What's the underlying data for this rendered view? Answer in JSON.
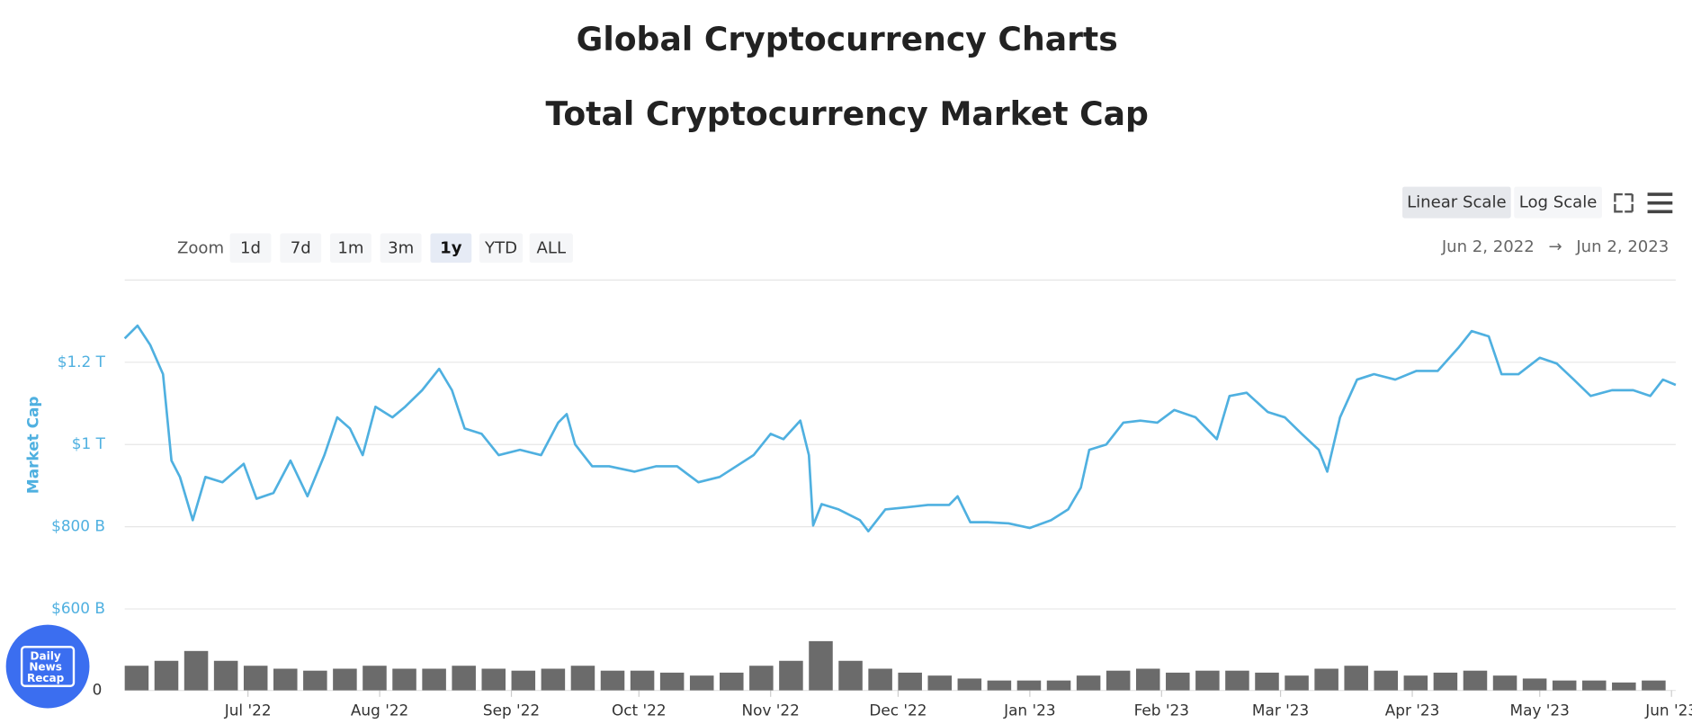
{
  "header": {
    "title": "Global Cryptocurrency Charts"
  },
  "controls": {
    "zoom_label": "Zoom",
    "zoom_options": [
      "1d",
      "7d",
      "1m",
      "3m",
      "1y",
      "YTD",
      "ALL"
    ],
    "zoom_selected": "1y",
    "scale_options": [
      "Linear Scale",
      "Log Scale"
    ],
    "scale_selected": "Linear Scale",
    "range_from": "Jun 2, 2022",
    "range_arrow": "→",
    "range_to": "Jun 2, 2023"
  },
  "logo": {
    "lines": [
      "Daily",
      "News",
      "Recap"
    ]
  },
  "chart_data": {
    "type": "line",
    "title": "Total Cryptocurrency Market Cap",
    "ylabel": "Market Cap",
    "x": [
      "2022-06-02",
      "2022-06-05",
      "2022-06-08",
      "2022-06-11",
      "2022-06-13",
      "2022-06-15",
      "2022-06-18",
      "2022-06-21",
      "2022-06-25",
      "2022-06-30",
      "2022-07-03",
      "2022-07-07",
      "2022-07-11",
      "2022-07-15",
      "2022-07-19",
      "2022-07-22",
      "2022-07-25",
      "2022-07-28",
      "2022-07-31",
      "2022-08-04",
      "2022-08-07",
      "2022-08-11",
      "2022-08-15",
      "2022-08-18",
      "2022-08-21",
      "2022-08-25",
      "2022-08-29",
      "2022-09-03",
      "2022-09-08",
      "2022-09-12",
      "2022-09-14",
      "2022-09-16",
      "2022-09-20",
      "2022-09-24",
      "2022-09-30",
      "2022-10-05",
      "2022-10-10",
      "2022-10-15",
      "2022-10-20",
      "2022-10-28",
      "2022-11-01",
      "2022-11-04",
      "2022-11-08",
      "2022-11-10",
      "2022-11-11",
      "2022-11-13",
      "2022-11-17",
      "2022-11-22",
      "2022-11-24",
      "2022-11-28",
      "2022-12-03",
      "2022-12-08",
      "2022-12-13",
      "2022-12-15",
      "2022-12-18",
      "2022-12-22",
      "2022-12-27",
      "2023-01-01",
      "2023-01-06",
      "2023-01-10",
      "2023-01-13",
      "2023-01-15",
      "2023-01-19",
      "2023-01-23",
      "2023-01-27",
      "2023-01-31",
      "2023-02-04",
      "2023-02-09",
      "2023-02-14",
      "2023-02-17",
      "2023-02-21",
      "2023-02-26",
      "2023-03-02",
      "2023-03-06",
      "2023-03-10",
      "2023-03-12",
      "2023-03-15",
      "2023-03-19",
      "2023-03-23",
      "2023-03-28",
      "2023-04-02",
      "2023-04-07",
      "2023-04-12",
      "2023-04-15",
      "2023-04-19",
      "2023-04-22",
      "2023-04-26",
      "2023-05-01",
      "2023-05-05",
      "2023-05-09",
      "2023-05-13",
      "2023-05-18",
      "2023-05-23",
      "2023-05-27",
      "2023-05-30",
      "2023-06-02"
    ],
    "series": [
      {
        "color": "#4fb0e0",
        "values": [
          1258,
          1289,
          1242,
          1171,
          961,
          921,
          816,
          921,
          908,
          953,
          868,
          882,
          961,
          874,
          974,
          1066,
          1039,
          974,
          1092,
          1066,
          1092,
          1132,
          1184,
          1132,
          1039,
          1026,
          974,
          987,
          974,
          1053,
          1074,
          1000,
          947,
          947,
          934,
          947,
          947,
          908,
          921,
          974,
          1026,
          1013,
          1058,
          974,
          803,
          855,
          842,
          816,
          789,
          842,
          847,
          853,
          853,
          874,
          811,
          811,
          808,
          797,
          816,
          842,
          895,
          987,
          1000,
          1053,
          1058,
          1053,
          1084,
          1066,
          1013,
          1118,
          1126,
          1079,
          1066,
          1026,
          987,
          934,
          1066,
          1158,
          1171,
          1158,
          1179,
          1179,
          1237,
          1276,
          1263,
          1171,
          1171,
          1211,
          1197,
          1158,
          1118,
          1132,
          1132,
          1118,
          1158,
          1145
        ]
      }
    ],
    "volume": {
      "color": "#6b6b6b",
      "x": [
        "2022-06-02",
        "2022-06-09",
        "2022-06-16",
        "2022-06-23",
        "2022-06-30",
        "2022-07-07",
        "2022-07-14",
        "2022-07-21",
        "2022-07-28",
        "2022-08-04",
        "2022-08-11",
        "2022-08-18",
        "2022-08-25",
        "2022-09-01",
        "2022-09-08",
        "2022-09-15",
        "2022-09-22",
        "2022-09-29",
        "2022-10-06",
        "2022-10-13",
        "2022-10-20",
        "2022-10-27",
        "2022-11-03",
        "2022-11-10",
        "2022-11-17",
        "2022-11-24",
        "2022-12-01",
        "2022-12-08",
        "2022-12-15",
        "2022-12-22",
        "2022-12-29",
        "2023-01-05",
        "2023-01-12",
        "2023-01-19",
        "2023-01-26",
        "2023-02-02",
        "2023-02-09",
        "2023-02-16",
        "2023-02-23",
        "2023-03-02",
        "2023-03-09",
        "2023-03-16",
        "2023-03-23",
        "2023-03-30",
        "2023-04-06",
        "2023-04-13",
        "2023-04-20",
        "2023-04-27",
        "2023-05-04",
        "2023-05-11",
        "2023-05-18",
        "2023-05-25"
      ],
      "values": [
        100,
        120,
        160,
        120,
        100,
        88,
        80,
        88,
        100,
        88,
        88,
        100,
        88,
        80,
        88,
        100,
        80,
        80,
        72,
        60,
        72,
        100,
        120,
        200,
        120,
        88,
        72,
        60,
        48,
        40,
        40,
        40,
        60,
        80,
        88,
        72,
        80,
        80,
        72,
        60,
        88,
        100,
        80,
        60,
        72,
        80,
        60,
        48,
        40,
        40,
        32,
        40
      ]
    },
    "xlim": [
      "2022-06-02",
      "2023-06-02"
    ],
    "xticks": [
      {
        "value": "2022-07-01",
        "label": "Jul '22"
      },
      {
        "value": "2022-08-01",
        "label": "Aug '22"
      },
      {
        "value": "2022-09-01",
        "label": "Sep '22"
      },
      {
        "value": "2022-10-01",
        "label": "Oct '22"
      },
      {
        "value": "2022-11-01",
        "label": "Nov '22"
      },
      {
        "value": "2022-12-01",
        "label": "Dec '22"
      },
      {
        "value": "2023-01-01",
        "label": "Jan '23"
      },
      {
        "value": "2023-02-01",
        "label": "Feb '23"
      },
      {
        "value": "2023-03-01",
        "label": "Mar '23"
      },
      {
        "value": "2023-04-01",
        "label": "Apr '23"
      },
      {
        "value": "2023-05-01",
        "label": "May '23"
      },
      {
        "value": "2023-06-01",
        "label": "Jun '23"
      }
    ],
    "ylim": [
      600,
      1400
    ],
    "yticks": [
      {
        "value": 600,
        "label": "$600 B"
      },
      {
        "value": 800,
        "label": "$800 B"
      },
      {
        "value": 1000,
        "label": "$1 T"
      },
      {
        "value": 1200,
        "label": "$1.2 T"
      }
    ],
    "y2lim": [
      0,
      300
    ],
    "y2ticks": [
      0
    ],
    "grid": true,
    "log_scale": false
  }
}
